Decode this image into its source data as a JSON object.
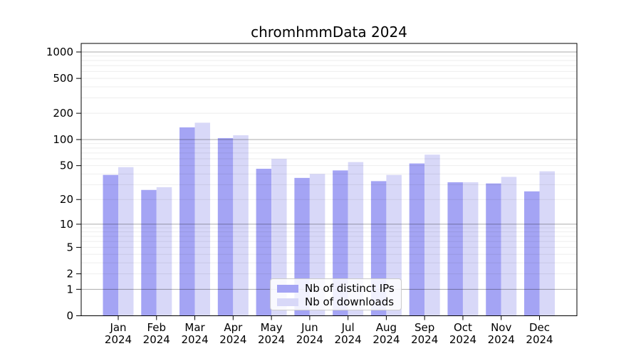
{
  "figure": {
    "title": "chromhmmData 2024"
  },
  "chart_data": {
    "type": "bar",
    "title": "chromhmmData 2024",
    "categories": [
      "Jan",
      "Feb",
      "Mar",
      "Apr",
      "May",
      "Jun",
      "Jul",
      "Aug",
      "Sep",
      "Oct",
      "Nov",
      "Dec"
    ],
    "x_year": "2024",
    "series": [
      {
        "name": "Nb of distinct IPs",
        "color": "#a4a4f4",
        "values": [
          39,
          26,
          138,
          104,
          46,
          36,
          44,
          33,
          53,
          32,
          31,
          25
        ]
      },
      {
        "name": "Nb of downloads",
        "color": "#d8d8f8",
        "values": [
          48,
          28,
          156,
          112,
          60,
          40,
          55,
          39,
          67,
          32,
          37,
          43
        ]
      }
    ],
    "y_axis": {
      "scale": "log1p",
      "ticks": [
        1000,
        500,
        200,
        100,
        50,
        20,
        10,
        5,
        2,
        1,
        0
      ],
      "major_gridlines": [
        1,
        10,
        100,
        1000
      ],
      "range": [
        0,
        1250
      ]
    },
    "legend": {
      "position": "lower-center"
    },
    "grid": true,
    "colors": {
      "axis": "#000000",
      "major_grid": "#a8a8a8",
      "minor_grid": "#ededed"
    }
  }
}
